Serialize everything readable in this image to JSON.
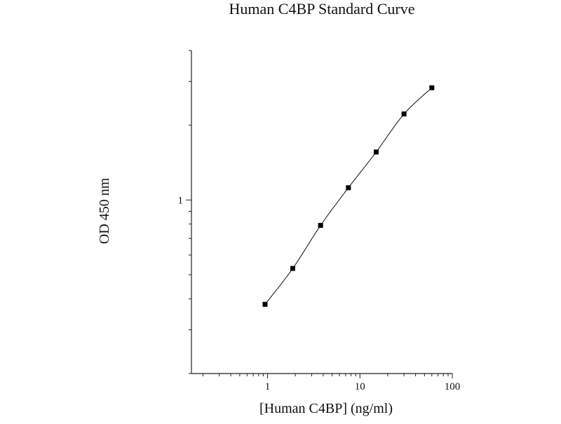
{
  "chart_data": {
    "type": "line",
    "title": "Human C4BP Standard Curve",
    "xlabel": "[Human C4BP] (ng/ml)",
    "ylabel": "OD 450 nm",
    "x_scale": "log",
    "y_scale": "log",
    "xlim": [
      0.15,
      100
    ],
    "ylim": [
      0.2,
      4
    ],
    "x_ticks": [
      {
        "value": 1,
        "label": "1"
      },
      {
        "value": 10,
        "label": "10"
      },
      {
        "value": 100,
        "label": "100"
      }
    ],
    "y_ticks": [
      {
        "value": 1,
        "label": "1"
      }
    ],
    "grid": false,
    "series": [
      {
        "x": [
          0.94,
          1.875,
          3.75,
          7.5,
          15,
          30,
          60
        ],
        "y": [
          0.38,
          0.53,
          0.79,
          1.12,
          1.56,
          2.22,
          2.83
        ]
      }
    ]
  }
}
